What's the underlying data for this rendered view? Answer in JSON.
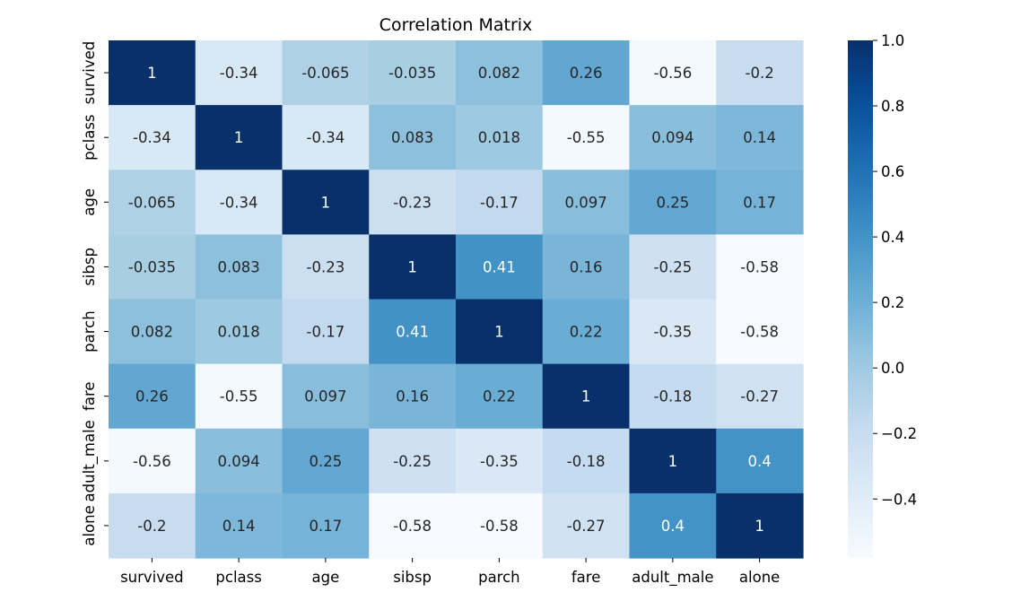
{
  "chart_data": {
    "type": "heatmap",
    "title": "Correlation Matrix",
    "xlabel": "",
    "ylabel": "",
    "x_labels": [
      "survived",
      "pclass",
      "age",
      "sibsp",
      "parch",
      "fare",
      "adult_male",
      "alone"
    ],
    "y_labels": [
      "survived",
      "pclass",
      "age",
      "sibsp",
      "parch",
      "fare",
      "adult_male",
      "alone"
    ],
    "values": [
      [
        1,
        -0.34,
        -0.065,
        -0.035,
        0.082,
        0.26,
        -0.56,
        -0.2
      ],
      [
        -0.34,
        1,
        -0.34,
        0.083,
        0.018,
        -0.55,
        0.094,
        0.14
      ],
      [
        -0.065,
        -0.34,
        1,
        -0.23,
        -0.17,
        0.097,
        0.25,
        0.17
      ],
      [
        -0.035,
        0.083,
        -0.23,
        1,
        0.41,
        0.16,
        -0.25,
        -0.58
      ],
      [
        0.082,
        0.018,
        -0.17,
        0.41,
        1,
        0.22,
        -0.35,
        -0.58
      ],
      [
        0.26,
        -0.55,
        0.097,
        0.16,
        0.22,
        1,
        -0.18,
        -0.27
      ],
      [
        -0.56,
        0.094,
        0.25,
        -0.25,
        -0.35,
        -0.18,
        1,
        0.4
      ],
      [
        -0.2,
        0.14,
        0.17,
        -0.58,
        -0.58,
        -0.27,
        0.4,
        1
      ]
    ],
    "annotations": [
      [
        "1",
        "-0.34",
        "-0.065",
        "-0.035",
        "0.082",
        "0.26",
        "-0.56",
        "-0.2"
      ],
      [
        "-0.34",
        "1",
        "-0.34",
        "0.083",
        "0.018",
        "-0.55",
        "0.094",
        "0.14"
      ],
      [
        "-0.065",
        "-0.34",
        "1",
        "-0.23",
        "-0.17",
        "0.097",
        "0.25",
        "0.17"
      ],
      [
        "-0.035",
        "0.083",
        "-0.23",
        "1",
        "0.41",
        "0.16",
        "-0.25",
        "-0.58"
      ],
      [
        "0.082",
        "0.018",
        "-0.17",
        "0.41",
        "1",
        "0.22",
        "-0.35",
        "-0.58"
      ],
      [
        "0.26",
        "-0.55",
        "0.097",
        "0.16",
        "0.22",
        "1",
        "-0.18",
        "-0.27"
      ],
      [
        "-0.56",
        "0.094",
        "0.25",
        "-0.25",
        "-0.35",
        "-0.18",
        "1",
        "0.4"
      ],
      [
        "-0.2",
        "0.14",
        "0.17",
        "-0.58",
        "-0.58",
        "-0.27",
        "0.4",
        "1"
      ]
    ],
    "colormap": "Blues",
    "color_range": [
      -0.58,
      1
    ],
    "colorbar": {
      "ticks": [
        1.0,
        0.8,
        0.6,
        0.4,
        0.2,
        0.0,
        -0.2,
        -0.4
      ],
      "tick_labels": [
        "1.0",
        "0.8",
        "0.6",
        "0.4",
        "0.2",
        "0.0",
        "−0.2",
        "−0.4"
      ]
    },
    "grid": false,
    "legend": "colorbar-right"
  }
}
